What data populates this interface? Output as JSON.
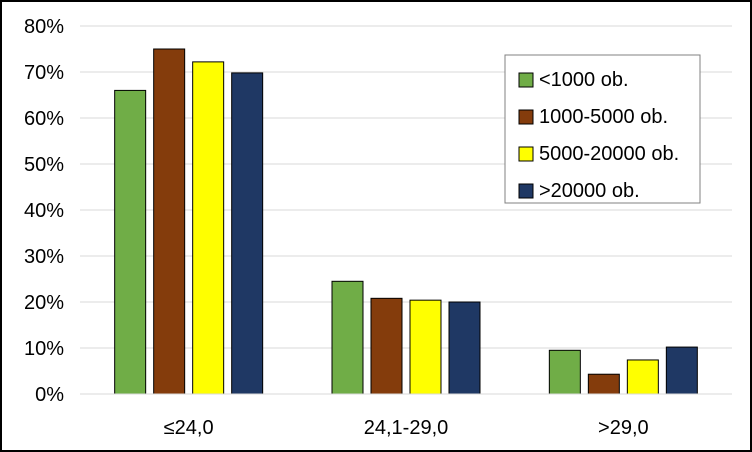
{
  "chart_data": {
    "type": "bar",
    "categories": [
      "≤24,0",
      "24,1-29,0",
      ">29,0"
    ],
    "series": [
      {
        "name": "<1000 ob.",
        "color": "#70ad47",
        "values": [
          66,
          24.5,
          9.5
        ]
      },
      {
        "name": "1000-5000 ob.",
        "color": "#843c0c",
        "values": [
          75,
          20.8,
          4.3
        ]
      },
      {
        "name": "5000-20000 ob.",
        "color": "#ffff00",
        "values": [
          72.2,
          20.4,
          7.4
        ]
      },
      {
        "name": ">20000 ob.",
        "color": "#1f3864",
        "values": [
          69.8,
          20,
          10.2
        ]
      }
    ],
    "yticks": [
      "0%",
      "10%",
      "20%",
      "30%",
      "40%",
      "50%",
      "60%",
      "70%",
      "80%"
    ],
    "ylim": [
      0,
      80
    ],
    "title": "",
    "xlabel": "",
    "ylabel": "",
    "grid": true,
    "legend_position": "top-right"
  }
}
